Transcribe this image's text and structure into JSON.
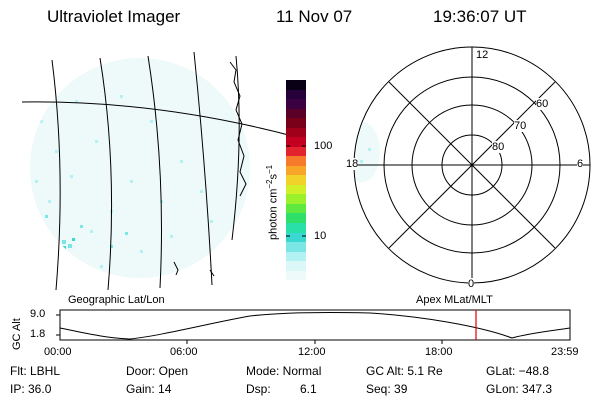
{
  "header": {
    "instrument": "Ultraviolet Imager",
    "date": "11 Nov 07",
    "time": "19:36:07 UT"
  },
  "colorbar": {
    "unit_text": "photon cm",
    "unit_exp1": "−2",
    "unit_s": "s",
    "unit_exp2": "−1",
    "tick_100": "100",
    "tick_10": "10",
    "colors": [
      "#0a0016",
      "#26003b",
      "#3b0040",
      "#5a0028",
      "#7a001a",
      "#a0001a",
      "#c40020",
      "#e3242f",
      "#f57a2a",
      "#f7a62a",
      "#f0d22a",
      "#d2f02a",
      "#9af02a",
      "#5ee840",
      "#2ee06a",
      "#28e0a8",
      "#3ad8d0",
      "#7ae6e6",
      "#b2f2f2",
      "#dcf7f7",
      "#eef9f9"
    ]
  },
  "polar": {
    "mlt_12": "12",
    "mlt_18": "18",
    "mlt_6": "6",
    "mlt_0": "0",
    "lat_60": "60",
    "lat_70": "70",
    "lat_80": "80"
  },
  "map_labels": {
    "left": "Geographic Lat/Lon",
    "right": "Apex MLat/MLT"
  },
  "altitude_plot": {
    "axis_label": "GC Alt",
    "ymax": "9.0",
    "ymin": "1.8",
    "xticks": [
      "00:00",
      "06:00",
      "12:00",
      "18:00",
      "23:59"
    ],
    "marker_time": "19:36:07",
    "marker_color": "#e00000"
  },
  "footer": {
    "filter": "Flt: LBHL",
    "door": "Door: Open",
    "mode": "Mode: Normal",
    "gc_alt": "GC Alt: 5.1 Re",
    "glat": "GLat: −48.8",
    "ip": "IP: 36.0",
    "gain": "Gain: 14",
    "dsp_label": "Dsp:",
    "dsp_value": "6.1",
    "seq": "Seq: 39",
    "glon": "GLon: 347.3"
  }
}
